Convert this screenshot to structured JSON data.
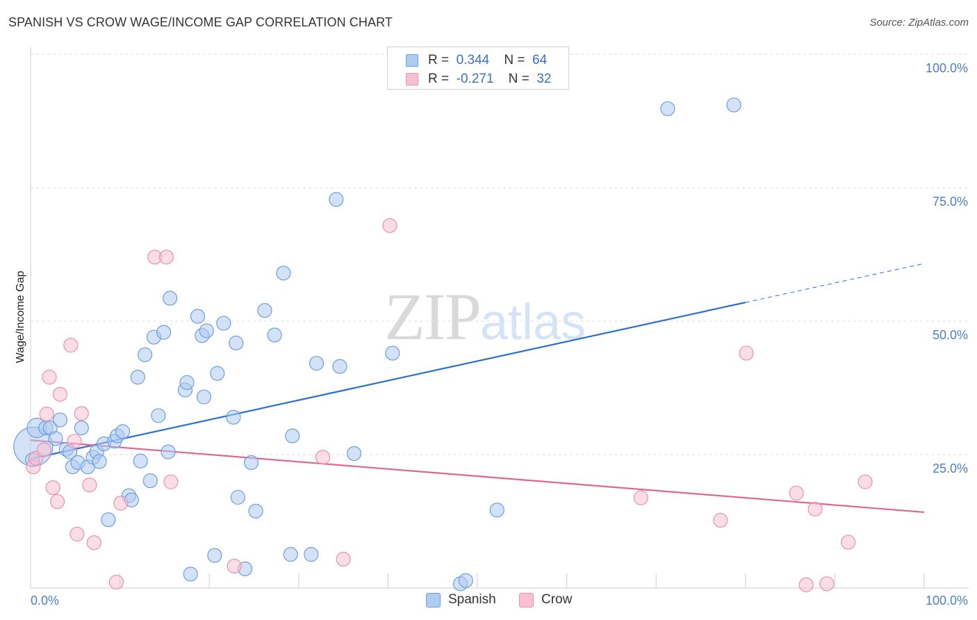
{
  "header": {
    "title": "SPANISH VS CROW WAGE/INCOME GAP CORRELATION CHART",
    "source": "Source: ZipAtlas.com"
  },
  "watermark": {
    "zip": "ZIP",
    "atlas": "atlas"
  },
  "legend": {
    "r_label": "R =",
    "n_label": "N =",
    "rows": [
      {
        "r": "0.344",
        "n": "64"
      },
      {
        "r": "-0.271",
        "n": "32"
      }
    ]
  },
  "colors": {
    "spanish_fill": "#aecbf0",
    "spanish_stroke": "#6b9ee0",
    "spanish_line": "#2a6fd0",
    "crow_fill": "#f8c1d2",
    "crow_stroke": "#ec8fae",
    "crow_line": "#e06592",
    "tick": "#4a7fc8",
    "grid": "#dddddd"
  },
  "chart_data": {
    "type": "scatter",
    "title": "SPANISH VS CROW WAGE/INCOME GAP CORRELATION CHART",
    "xlabel": "",
    "ylabel": "Wage/Income Gap",
    "xlim": [
      0,
      100
    ],
    "ylim": [
      0,
      100
    ],
    "x_tick_labels": {
      "left": "0.0%",
      "right": "100.0%"
    },
    "y_ticks": [
      {
        "value": 25,
        "label": "25.0%"
      },
      {
        "value": 50,
        "label": "50.0%"
      },
      {
        "value": 75,
        "label": "75.0%"
      },
      {
        "value": 100,
        "label": "100.0%"
      }
    ],
    "series": [
      {
        "name": "Spanish",
        "R": 0.344,
        "N": 64,
        "trend": {
          "x0": 0,
          "y0": 24.2,
          "x1": 80,
          "y1": 53.5,
          "dash_to_x": 100,
          "dash_to_y": 60.8
        },
        "points": [
          [
            0.3,
            26.5,
            28
          ],
          [
            0.7,
            30.0,
            14
          ],
          [
            1.7,
            30.0,
            10
          ],
          [
            2.2,
            30.0,
            10
          ],
          [
            2.8,
            28.0,
            10
          ],
          [
            3.3,
            31.5,
            10
          ],
          [
            4.0,
            26.0,
            10
          ],
          [
            4.4,
            25.5,
            10
          ],
          [
            4.7,
            22.7,
            10
          ],
          [
            5.3,
            23.5,
            10
          ],
          [
            5.7,
            30.0,
            10
          ],
          [
            6.4,
            22.7,
            10
          ],
          [
            7.0,
            24.5,
            10
          ],
          [
            7.4,
            25.5,
            10
          ],
          [
            7.7,
            23.7,
            10
          ],
          [
            8.2,
            27.0,
            10
          ],
          [
            8.7,
            12.8,
            10
          ],
          [
            9.4,
            27.5,
            10
          ],
          [
            9.7,
            28.5,
            10
          ],
          [
            10.3,
            29.3,
            10
          ],
          [
            11.0,
            17.3,
            10
          ],
          [
            11.3,
            16.5,
            10
          ],
          [
            12.0,
            39.5,
            10
          ],
          [
            12.3,
            23.8,
            10
          ],
          [
            12.8,
            43.7,
            10
          ],
          [
            13.4,
            20.1,
            10
          ],
          [
            13.8,
            47.0,
            10
          ],
          [
            14.3,
            32.3,
            10
          ],
          [
            14.9,
            47.9,
            10
          ],
          [
            15.4,
            25.5,
            10
          ],
          [
            15.6,
            54.3,
            10
          ],
          [
            17.3,
            37.1,
            10
          ],
          [
            17.5,
            38.5,
            10
          ],
          [
            17.9,
            2.6,
            10
          ],
          [
            18.7,
            50.9,
            10
          ],
          [
            19.2,
            47.3,
            10
          ],
          [
            19.4,
            35.8,
            10
          ],
          [
            19.7,
            48.2,
            10
          ],
          [
            20.6,
            6.1,
            10
          ],
          [
            20.9,
            40.2,
            10
          ],
          [
            21.6,
            49.6,
            10
          ],
          [
            22.7,
            32.0,
            10
          ],
          [
            23.0,
            45.9,
            10
          ],
          [
            23.2,
            17.0,
            10
          ],
          [
            24.0,
            3.6,
            10
          ],
          [
            24.7,
            23.5,
            10
          ],
          [
            25.2,
            14.4,
            10
          ],
          [
            26.2,
            52.0,
            10
          ],
          [
            27.3,
            47.4,
            10
          ],
          [
            28.3,
            59.0,
            10
          ],
          [
            29.1,
            6.3,
            10
          ],
          [
            29.3,
            28.5,
            10
          ],
          [
            31.4,
            6.3,
            10
          ],
          [
            32.0,
            42.1,
            10
          ],
          [
            34.2,
            72.8,
            10
          ],
          [
            34.6,
            41.5,
            10
          ],
          [
            36.2,
            25.2,
            10
          ],
          [
            40.5,
            44.0,
            10
          ],
          [
            48.1,
            0.8,
            10
          ],
          [
            48.7,
            1.4,
            10
          ],
          [
            52.2,
            14.6,
            10
          ],
          [
            71.3,
            89.8,
            10
          ],
          [
            78.7,
            90.5,
            10
          ],
          [
            0.2,
            24.0,
            10
          ]
        ]
      },
      {
        "name": "Crow",
        "R": -0.271,
        "N": 32,
        "trend": {
          "x0": 0,
          "y0": 27.7,
          "x1": 100,
          "y1": 14.2
        },
        "points": [
          [
            0.3,
            22.7,
            10
          ],
          [
            0.6,
            24.3,
            10
          ],
          [
            1.5,
            25.9,
            10
          ],
          [
            1.8,
            32.6,
            10
          ],
          [
            2.1,
            39.5,
            10
          ],
          [
            2.5,
            18.8,
            10
          ],
          [
            3.0,
            16.2,
            10
          ],
          [
            3.3,
            36.3,
            10
          ],
          [
            4.5,
            45.5,
            10
          ],
          [
            4.9,
            27.5,
            10
          ],
          [
            5.2,
            10.1,
            10
          ],
          [
            5.7,
            32.7,
            10
          ],
          [
            6.6,
            19.3,
            10
          ],
          [
            7.1,
            8.5,
            10
          ],
          [
            9.6,
            1.1,
            10
          ],
          [
            10.1,
            15.9,
            10
          ],
          [
            13.9,
            62.0,
            10
          ],
          [
            15.2,
            62.0,
            10
          ],
          [
            15.7,
            19.9,
            10
          ],
          [
            22.8,
            4.1,
            10
          ],
          [
            32.7,
            24.5,
            10
          ],
          [
            35.0,
            5.4,
            10
          ],
          [
            40.2,
            67.9,
            10
          ],
          [
            68.3,
            16.9,
            10
          ],
          [
            77.2,
            12.7,
            10
          ],
          [
            80.1,
            44.0,
            10
          ],
          [
            85.7,
            17.8,
            10
          ],
          [
            86.8,
            0.6,
            10
          ],
          [
            87.8,
            14.8,
            10
          ],
          [
            89.1,
            0.8,
            10
          ],
          [
            91.5,
            8.6,
            10
          ],
          [
            93.4,
            19.9,
            10
          ]
        ]
      }
    ]
  }
}
